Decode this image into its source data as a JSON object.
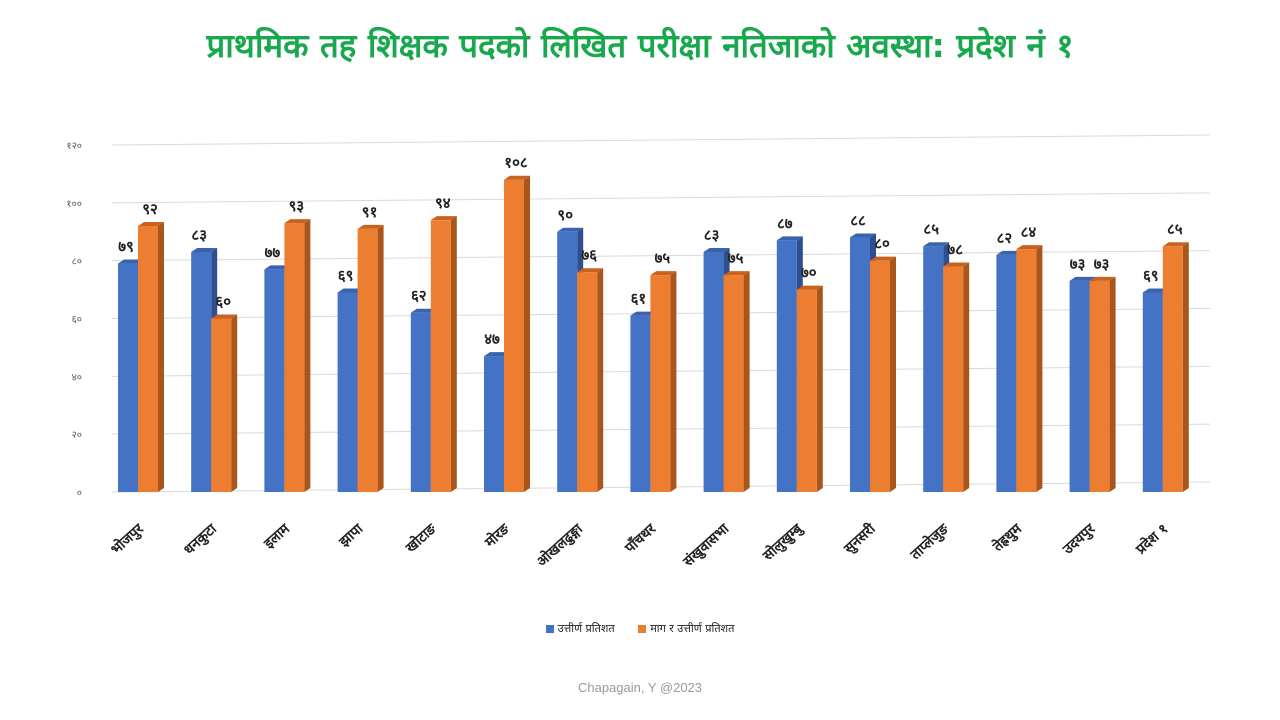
{
  "title": "प्राथमिक तह शिक्षक पदको लिखित परीक्षा नतिजाको अवस्था: प्रदेश नं १",
  "footer": "Chapagain, Y @2023",
  "chart_data": {
    "type": "bar",
    "title": "प्राथमिक तह शिक्षक पदको लिखित परीक्षा नतिजाको अवस्था: प्रदेश नं १",
    "categories": [
      "भोजपुर",
      "धनकुटा",
      "इलाम",
      "झापा",
      "खोटाङ",
      "मोरङ",
      "ओखलढुङ्गा",
      "पाँचथर",
      "संखुवासभा",
      "सोलुखुम्बु",
      "सुनसरी",
      "ताप्लेजुङ",
      "तेह्रथुम",
      "उदयपुर",
      "प्रदेश १"
    ],
    "series": [
      {
        "name": "उत्तीर्ण प्रतिशत",
        "color": "#4472c4",
        "side_color": "#2e4f8f",
        "top_color": "#3a63ad",
        "values": [
          79,
          83,
          77,
          69,
          62,
          47,
          90,
          61,
          83,
          87,
          88,
          85,
          82,
          73,
          69
        ],
        "labels": [
          "७९",
          "८३",
          "७७",
          "६९",
          "६२",
          "४७",
          "९०",
          "६१",
          "८३",
          "८७",
          "८८",
          "८५",
          "८२",
          "७३",
          "६९"
        ]
      },
      {
        "name": "माग र उत्तीर्ण प्रतिशत",
        "color": "#ed7d31",
        "side_color": "#a9561c",
        "top_color": "#c8621f",
        "values": [
          92,
          60,
          93,
          91,
          94,
          108,
          76,
          75,
          75,
          70,
          80,
          78,
          84,
          73,
          85
        ],
        "labels": [
          "९२",
          "६०",
          "९३",
          "९१",
          "९४",
          "१०८",
          "७६",
          "७५",
          "७५",
          "७०",
          "८०",
          "७८",
          "८४",
          "७३",
          "८५"
        ]
      }
    ],
    "ylim": [
      0,
      120
    ],
    "yticks": [
      0,
      20,
      40,
      60,
      80,
      100,
      120
    ],
    "ytick_labels": [
      "०",
      "२०",
      "४०",
      "६०",
      "८०",
      "१००",
      "१२०"
    ],
    "grid": true,
    "legend_position": "bottom"
  }
}
